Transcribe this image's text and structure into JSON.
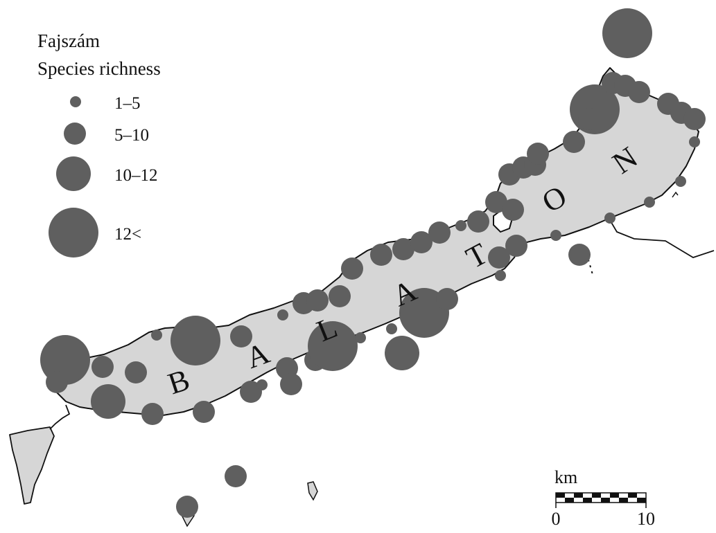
{
  "legend": {
    "title_hu": "Fajszám",
    "title_en": "Species richness",
    "classes": [
      {
        "id": "c1",
        "label": "1–5"
      },
      {
        "id": "c2",
        "label": "5–10"
      },
      {
        "id": "c3",
        "label": "10–12"
      },
      {
        "id": "c4",
        "label": "12<"
      }
    ]
  },
  "lake": {
    "letters": [
      "B",
      "A",
      "L",
      "A",
      "T",
      "O",
      "N"
    ]
  },
  "scale_bar": {
    "unit": "km",
    "start_label": "0",
    "end_label": "10",
    "segments": 10
  },
  "colors": {
    "lake_fill": "#d6d6d6",
    "marker_fill": "#5f5f5f",
    "outline": "#111111",
    "background": "#ffffff"
  }
}
